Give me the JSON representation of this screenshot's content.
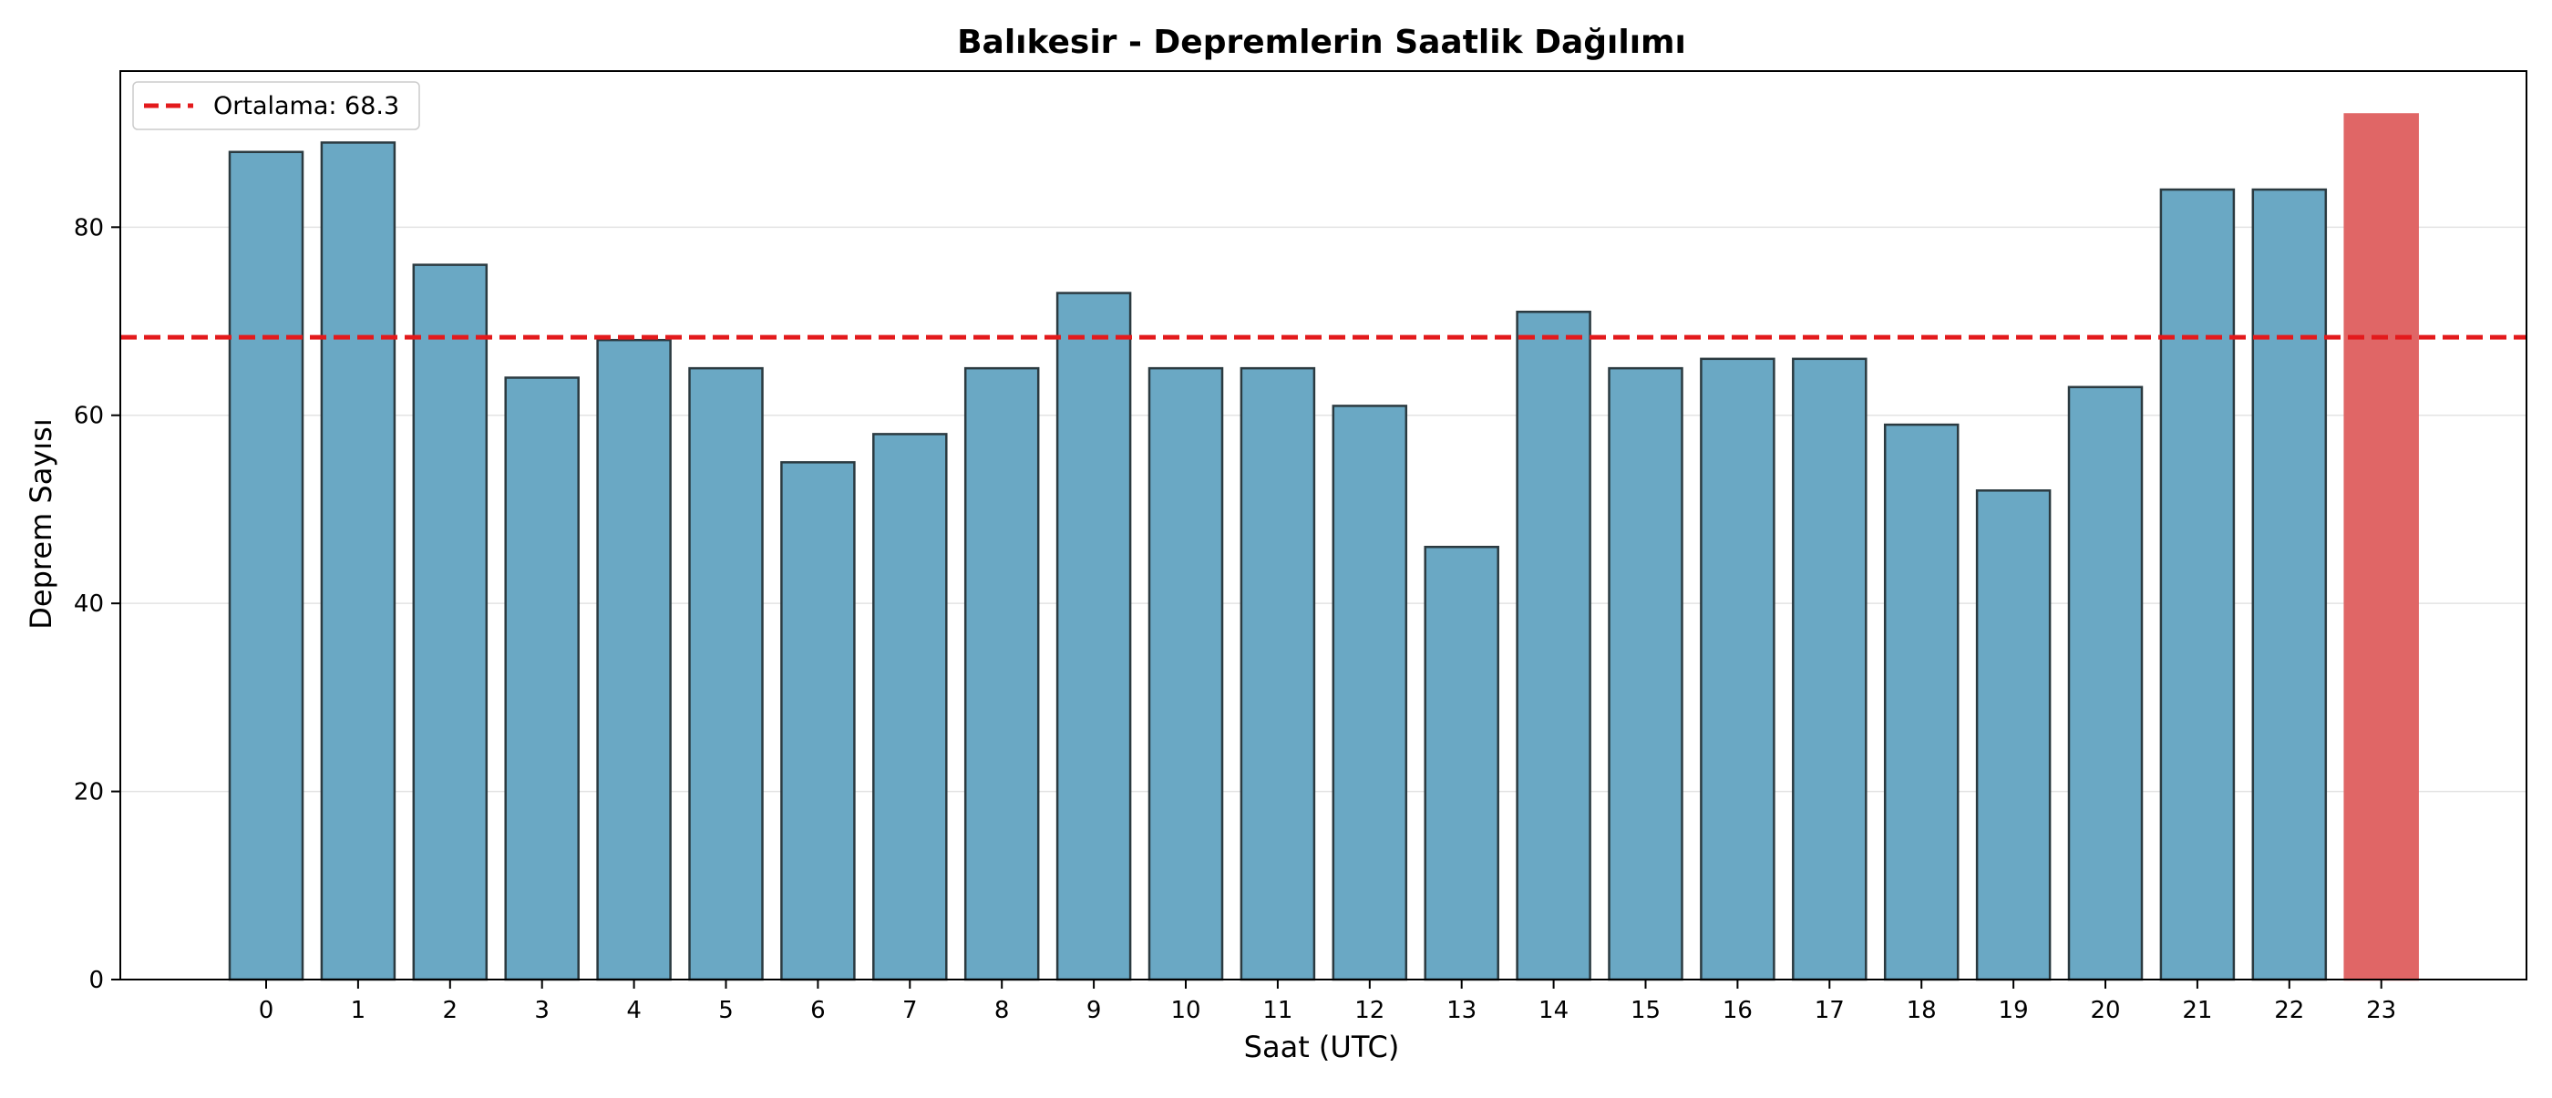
{
  "chart_data": {
    "type": "bar",
    "title": "Balıkesir - Depremlerin Saatlik Dağılımı",
    "xlabel": "Saat (UTC)",
    "ylabel": "Deprem Sayısı",
    "categories": [
      "0",
      "1",
      "2",
      "3",
      "4",
      "5",
      "6",
      "7",
      "8",
      "9",
      "10",
      "11",
      "12",
      "13",
      "14",
      "15",
      "16",
      "17",
      "18",
      "19",
      "20",
      "21",
      "22",
      "23"
    ],
    "values": [
      88,
      89,
      76,
      64,
      68,
      65,
      55,
      58,
      65,
      73,
      65,
      65,
      61,
      46,
      71,
      65,
      66,
      66,
      59,
      52,
      63,
      84,
      84,
      92
    ],
    "highlight_index": 23,
    "ylim": [
      0,
      96.6
    ],
    "yticks": [
      "0",
      "20",
      "40",
      "60",
      "80"
    ],
    "ytick_values": [
      0,
      20,
      40,
      60,
      80
    ],
    "mean_line": {
      "value": 68.3,
      "label": "Ortalama: 68.3",
      "style": "dashed"
    },
    "legend": {
      "position": "top-left"
    },
    "grid": "horizontal",
    "colors": {
      "bar": "#6aa8c4",
      "bar_highlight": "#e06666",
      "bar_edge": "#2b3a40",
      "mean_line": "#e31a1c"
    }
  }
}
